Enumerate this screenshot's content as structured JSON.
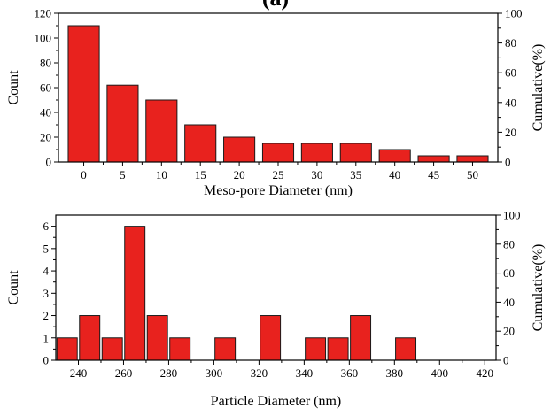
{
  "colors": {
    "bar_fill": "#e8221e",
    "bar_stroke": "#1a1a1a",
    "axis": "#000000"
  },
  "panel_label": "(a)",
  "chart_data": [
    {
      "type": "bar",
      "xlabel": "Meso-pore Diameter (nm)",
      "ylabel": "Count",
      "y2label": "Cumulative(%)",
      "x": [
        0,
        5,
        10,
        15,
        20,
        25,
        30,
        35,
        40,
        45,
        50
      ],
      "values": [
        110,
        62,
        50,
        30,
        20,
        15,
        15,
        15,
        10,
        5,
        5
      ],
      "xlim": [
        -3.25,
        53.25
      ],
      "ylim": [
        0,
        120
      ],
      "y2lim": [
        0,
        100
      ],
      "xticks": [
        0,
        5,
        10,
        15,
        20,
        25,
        30,
        35,
        40,
        45,
        50
      ],
      "yticks": [
        0,
        20,
        40,
        60,
        80,
        100,
        120
      ],
      "y2ticks": [
        0,
        20,
        40,
        60,
        80,
        100
      ],
      "bar_width": 4.0,
      "grid": false
    },
    {
      "type": "bar",
      "xlabel": "Particle Diameter (nm)",
      "ylabel": "Count",
      "y2label": "Cumulative(%)",
      "x": [
        235,
        245,
        255,
        265,
        275,
        285,
        305,
        325,
        345,
        355,
        365,
        385
      ],
      "values": [
        1,
        2,
        1,
        6,
        2,
        1,
        1,
        2,
        1,
        1,
        2,
        1
      ],
      "xlim": [
        230,
        425
      ],
      "ylim": [
        0,
        6.5
      ],
      "y2lim": [
        0,
        100
      ],
      "xticks": [
        240,
        260,
        280,
        300,
        320,
        340,
        360,
        380,
        400,
        420
      ],
      "yticks": [
        0,
        1,
        2,
        3,
        4,
        5,
        6
      ],
      "y2ticks": [
        0,
        20,
        40,
        60,
        80,
        100
      ],
      "bar_width": 9.0,
      "grid": false
    }
  ]
}
